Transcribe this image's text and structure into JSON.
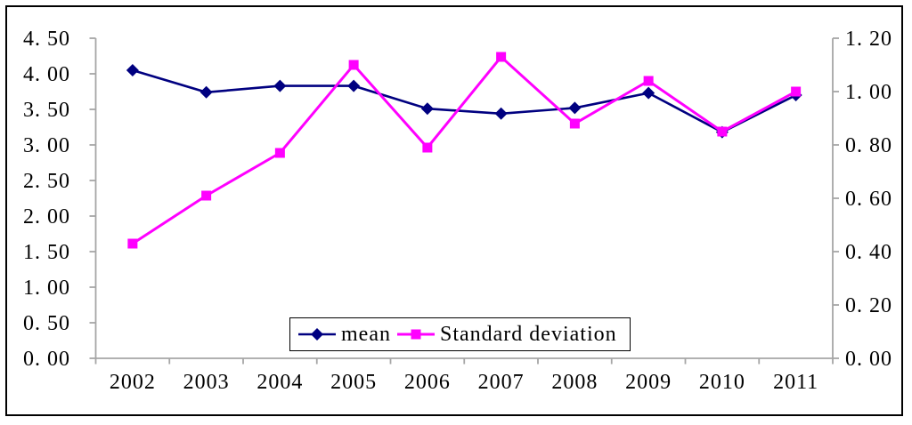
{
  "figure": {
    "background": "#ffffff",
    "border_color": "#000000"
  },
  "colors": {
    "axis_line": "#a6a6a6",
    "tick_text": "#000000",
    "mean_series": "#000080",
    "std_dev_series": "#ff00ff",
    "legend_border": "#000000"
  },
  "chart_data": {
    "type": "line",
    "title": "",
    "xlabel": "",
    "ylabel_left": "",
    "ylabel_right": "",
    "grid": false,
    "legend_position": "bottom-center",
    "categories": [
      "2002",
      "2003",
      "2004",
      "2005",
      "2006",
      "2007",
      "2008",
      "2009",
      "2010",
      "2011"
    ],
    "series": [
      {
        "name": "mean",
        "axis": "left",
        "color": "#000080",
        "marker": "diamond",
        "values": [
          4.05,
          3.74,
          3.83,
          3.83,
          3.51,
          3.44,
          3.52,
          3.73,
          3.18,
          3.7
        ]
      },
      {
        "name": "Standard deviation",
        "axis": "right",
        "color": "#ff00ff",
        "marker": "square",
        "values": [
          0.43,
          0.61,
          0.77,
          1.1,
          0.79,
          1.13,
          0.88,
          1.04,
          0.85,
          1.0
        ]
      }
    ],
    "left_axis": {
      "min": 0,
      "max": 4.5,
      "step": 0.5,
      "tick_labels": [
        "4. 50",
        "4. 00",
        "3. 50",
        "3. 00",
        "2. 50",
        "2. 00",
        "1. 50",
        "1. 00",
        "0. 50",
        "0. 00"
      ]
    },
    "right_axis": {
      "min": 0,
      "max": 1.2,
      "step": 0.2,
      "tick_labels": [
        "1. 20",
        "1. 00",
        "0. 80",
        "0. 60",
        "0. 40",
        "0. 20",
        "0. 00"
      ]
    }
  },
  "legend": {
    "items": [
      {
        "label": "mean"
      },
      {
        "label": "Standard deviation"
      }
    ]
  }
}
